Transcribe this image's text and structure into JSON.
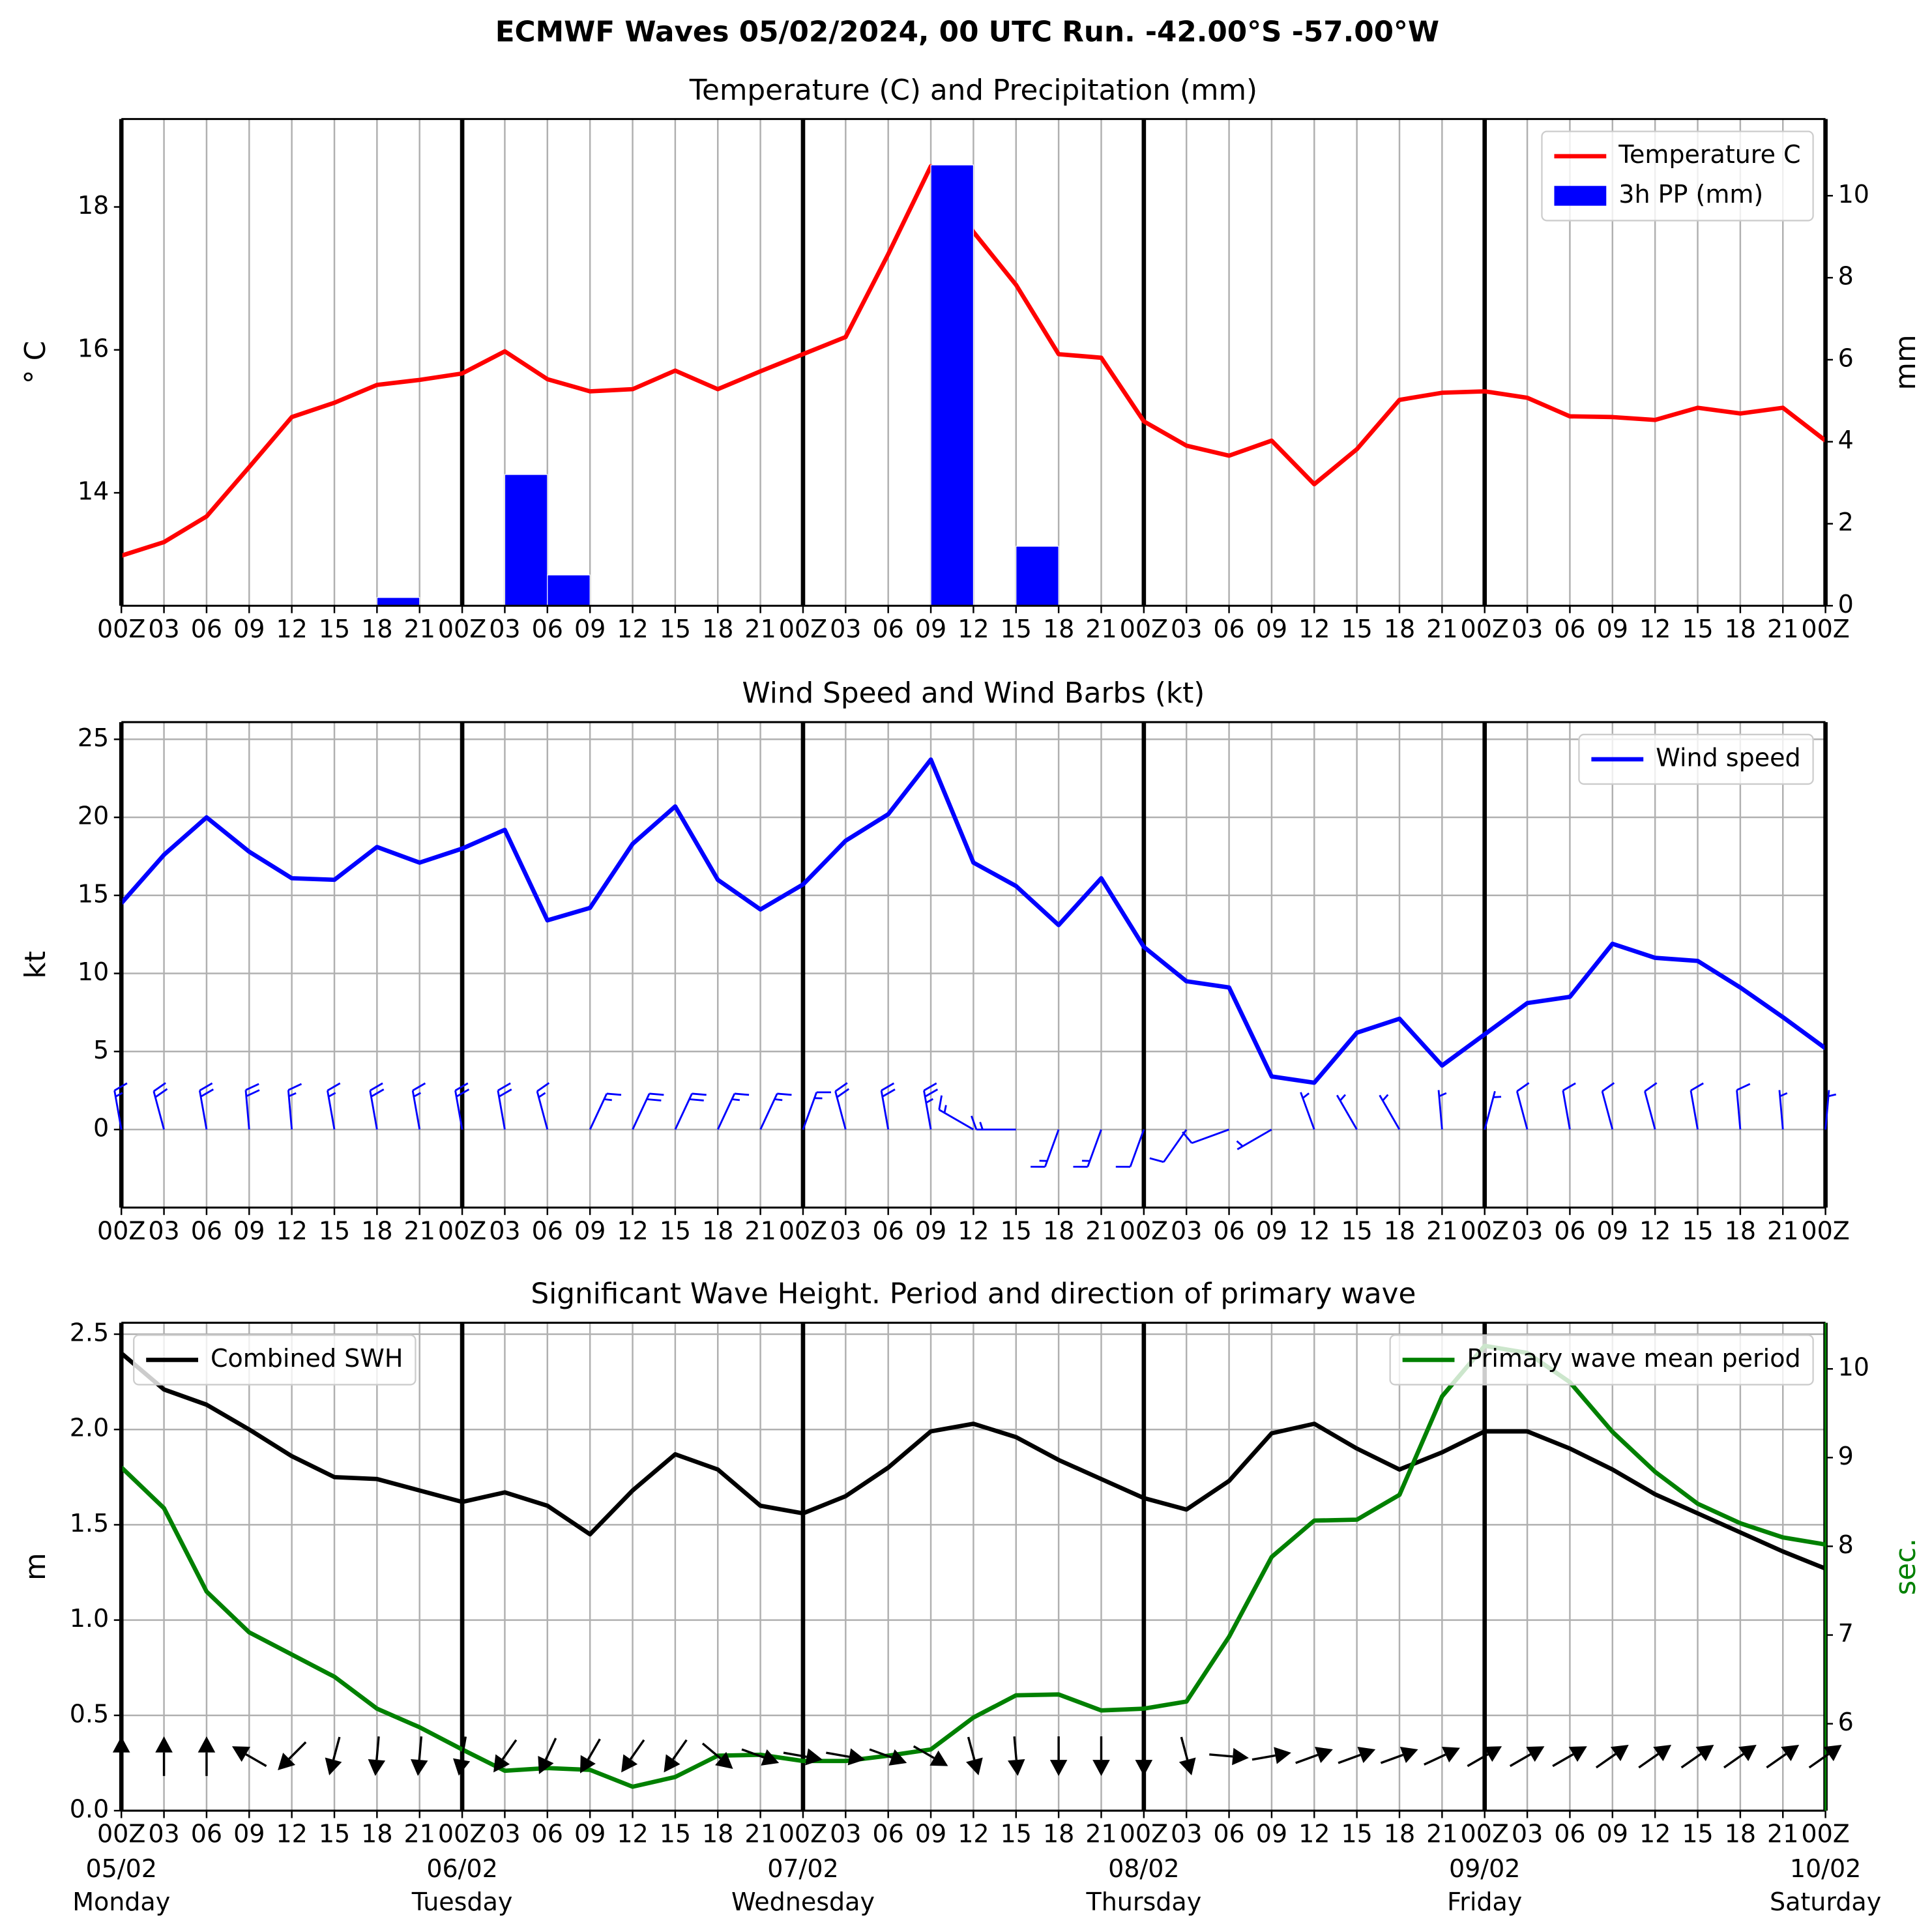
{
  "suptitle": "ECMWF Waves 05/02/2024, 00 UTC Run. -42.00°S -57.00°W",
  "chart_data": [
    {
      "type": "combo",
      "title": "Temperature (C) and Precipitation (mm)",
      "ylabel": "° C",
      "y2label": "mm",
      "categories": [
        "00Z",
        "03",
        "06",
        "09",
        "12",
        "15",
        "18",
        "21",
        "00Z",
        "03",
        "06",
        "09",
        "12",
        "15",
        "18",
        "21",
        "00Z",
        "03",
        "06",
        "09",
        "12",
        "15",
        "18",
        "21",
        "00Z",
        "03",
        "06",
        "09",
        "12",
        "15",
        "18",
        "21",
        "00Z",
        "03",
        "06",
        "09",
        "12",
        "15",
        "18",
        "21",
        "00Z"
      ],
      "series": [
        {
          "name": "Temperature C",
          "type": "line",
          "color": "#ff0000",
          "legend": "upper right",
          "values": [
            13.12,
            13.31,
            13.67,
            14.36,
            15.06,
            15.26,
            15.51,
            15.58,
            15.67,
            15.98,
            15.59,
            15.42,
            15.45,
            15.71,
            15.45,
            15.7,
            15.94,
            16.18,
            17.34,
            18.57,
            17.65,
            16.91,
            15.94,
            15.89,
            15.0,
            14.66,
            14.52,
            14.73,
            14.12,
            14.61,
            15.3,
            15.4,
            15.42,
            15.33,
            15.07,
            15.06,
            15.02,
            15.19,
            15.11,
            15.19,
            14.73
          ]
        },
        {
          "name": "3h PP (mm)",
          "type": "bar",
          "color": "#0000ff",
          "axis": "y2",
          "legend": "upper right",
          "values": [
            0,
            0,
            0,
            0,
            0,
            0,
            0.2,
            0,
            0,
            3.2,
            0.75,
            0.02,
            0,
            0,
            0,
            0,
            0,
            0,
            0,
            10.75,
            0.02,
            1.45,
            0,
            0,
            0,
            0,
            0,
            0,
            0,
            0,
            0,
            0,
            0,
            0,
            0,
            0,
            0,
            0,
            0,
            0,
            0
          ]
        }
      ],
      "ylim": [
        12.42,
        19.23
      ],
      "yticks": [
        14,
        16,
        18
      ],
      "y2lim": [
        0,
        11.87
      ],
      "y2ticks": [
        0,
        2,
        4,
        6,
        8,
        10
      ],
      "grid": "x",
      "day_lines": true
    },
    {
      "type": "line",
      "title": "Wind Speed and Wind Barbs (kt)",
      "ylabel": "kt",
      "categories": [
        "00Z",
        "03",
        "06",
        "09",
        "12",
        "15",
        "18",
        "21",
        "00Z",
        "03",
        "06",
        "09",
        "12",
        "15",
        "18",
        "21",
        "00Z",
        "03",
        "06",
        "09",
        "12",
        "15",
        "18",
        "21",
        "00Z",
        "03",
        "06",
        "09",
        "12",
        "15",
        "18",
        "21",
        "00Z",
        "03",
        "06",
        "09",
        "12",
        "15",
        "18",
        "21",
        "00Z"
      ],
      "series": [
        {
          "name": "Wind speed",
          "type": "line",
          "color": "#0000ff",
          "legend": "upper right",
          "values": [
            14.5,
            17.6,
            20.0,
            17.8,
            16.1,
            16.0,
            18.1,
            17.1,
            18.0,
            19.2,
            13.4,
            14.2,
            18.3,
            20.7,
            16.0,
            14.1,
            15.7,
            18.5,
            20.2,
            23.7,
            17.1,
            15.6,
            13.1,
            16.1,
            11.7,
            9.5,
            9.1,
            3.4,
            3.0,
            6.2,
            7.1,
            4.1,
            6.1,
            8.1,
            8.5,
            11.9,
            11.0,
            10.8,
            9.1,
            7.2,
            5.2
          ]
        }
      ],
      "wind_direction": [
        350,
        345,
        350,
        355,
        355,
        350,
        350,
        350,
        350,
        350,
        345,
        25,
        25,
        25,
        25,
        25,
        20,
        345,
        350,
        350,
        300,
        270,
        200,
        200,
        200,
        215,
        250,
        240,
        340,
        330,
        330,
        355,
        15,
        345,
        350,
        345,
        345,
        350,
        355,
        355,
        5
      ],
      "ylim": [
        -5,
        26.1
      ],
      "yticks": [
        0,
        5,
        10,
        15,
        20,
        25
      ],
      "grid": "both",
      "day_lines": true
    },
    {
      "type": "line",
      "title": "Significant Wave Height. Period and direction of primary wave",
      "ylabel": "m",
      "y2label": "sec.",
      "y2_color": "#008000",
      "categories": [
        "00Z",
        "03",
        "06",
        "09",
        "12",
        "15",
        "18",
        "21",
        "00Z",
        "03",
        "06",
        "09",
        "12",
        "15",
        "18",
        "21",
        "00Z",
        "03",
        "06",
        "09",
        "12",
        "15",
        "18",
        "21",
        "00Z",
        "03",
        "06",
        "09",
        "12",
        "15",
        "18",
        "21",
        "00Z",
        "03",
        "06",
        "09",
        "12",
        "15",
        "18",
        "21",
        "00Z"
      ],
      "dates": [
        "05/02",
        null,
        null,
        null,
        null,
        null,
        null,
        null,
        "06/02",
        null,
        null,
        null,
        null,
        null,
        null,
        null,
        "07/02",
        null,
        null,
        null,
        null,
        null,
        null,
        null,
        "08/02",
        null,
        null,
        null,
        null,
        null,
        null,
        null,
        "09/02",
        null,
        null,
        null,
        null,
        null,
        null,
        null,
        "10/02"
      ],
      "days": [
        "Monday",
        null,
        null,
        null,
        null,
        null,
        null,
        null,
        "Tuesday",
        null,
        null,
        null,
        null,
        null,
        null,
        null,
        "Wednesday",
        null,
        null,
        null,
        null,
        null,
        null,
        null,
        "Thursday",
        null,
        null,
        null,
        null,
        null,
        null,
        null,
        "Friday",
        null,
        null,
        null,
        null,
        null,
        null,
        null,
        "Saturday"
      ],
      "series": [
        {
          "name": "Combined SWH",
          "type": "line",
          "color": "#000000",
          "legend": "upper left",
          "values": [
            2.4,
            2.21,
            2.13,
            2.0,
            1.86,
            1.75,
            1.74,
            1.68,
            1.62,
            1.67,
            1.6,
            1.45,
            1.68,
            1.87,
            1.79,
            1.6,
            1.56,
            1.65,
            1.8,
            1.99,
            2.03,
            1.96,
            1.84,
            1.74,
            1.64,
            1.58,
            1.73,
            1.98,
            2.03,
            1.9,
            1.79,
            1.88,
            1.99,
            1.99,
            1.9,
            1.79,
            1.66,
            1.56,
            1.46,
            1.36,
            1.27
          ]
        },
        {
          "name": "Primary wave mean period",
          "type": "line",
          "color": "#008000",
          "axis": "y2",
          "legend": "upper right",
          "values": [
            8.89,
            8.43,
            7.49,
            7.03,
            6.78,
            6.53,
            6.17,
            5.96,
            5.71,
            5.47,
            5.5,
            5.48,
            5.29,
            5.4,
            5.64,
            5.65,
            5.58,
            5.58,
            5.64,
            5.71,
            6.07,
            6.32,
            6.33,
            6.15,
            6.17,
            6.25,
            6.98,
            7.88,
            8.29,
            8.3,
            8.58,
            9.69,
            10.26,
            10.18,
            9.85,
            9.29,
            8.84,
            8.48,
            8.26,
            8.1,
            8.02
          ]
        }
      ],
      "wave_direction": [
        0,
        0,
        0,
        300,
        225,
        195,
        185,
        185,
        190,
        215,
        205,
        210,
        215,
        215,
        130,
        110,
        100,
        100,
        110,
        120,
        165,
        175,
        180,
        180,
        180,
        165,
        95,
        80,
        70,
        70,
        70,
        65,
        60,
        60,
        60,
        55,
        55,
        55,
        55,
        55,
        55
      ],
      "ylim": [
        0,
        2.56
      ],
      "yticks": [
        {
          "value": 0,
          "label": "0.0"
        },
        0.5,
        {
          "value": 1,
          "label": "1.0"
        },
        1.5,
        {
          "value": 2,
          "label": "2.0"
        },
        2.5
      ],
      "y2lim": [
        5.02,
        10.52
      ],
      "y2ticks": [
        6,
        7,
        8,
        9,
        10
      ],
      "grid": "both",
      "day_lines": true
    }
  ]
}
